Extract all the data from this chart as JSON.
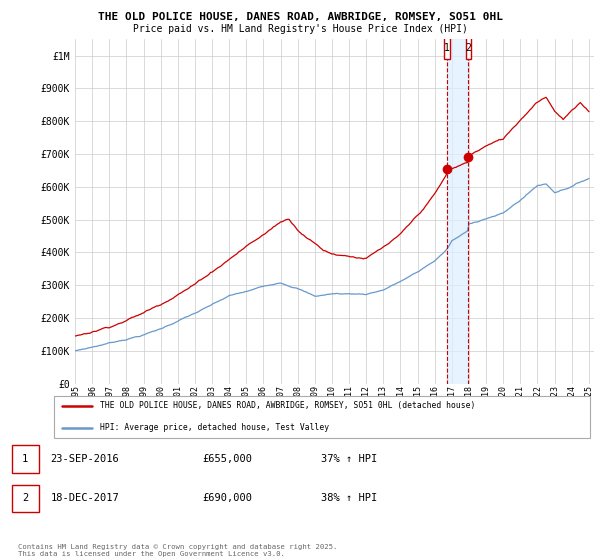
{
  "title_line1": "THE OLD POLICE HOUSE, DANES ROAD, AWBRIDGE, ROMSEY, SO51 0HL",
  "title_line2": "Price paid vs. HM Land Registry's House Price Index (HPI)",
  "red_label": "THE OLD POLICE HOUSE, DANES ROAD, AWBRIDGE, ROMSEY, SO51 0HL (detached house)",
  "blue_label": "HPI: Average price, detached house, Test Valley",
  "footnote": "Contains HM Land Registry data © Crown copyright and database right 2025.\nThis data is licensed under the Open Government Licence v3.0.",
  "annotation1_date": "23-SEP-2016",
  "annotation1_price": "£655,000",
  "annotation1_hpi": "37% ↑ HPI",
  "annotation2_date": "18-DEC-2017",
  "annotation2_price": "£690,000",
  "annotation2_hpi": "38% ↑ HPI",
  "sale1_year": 2016.72,
  "sale1_price": 655000,
  "sale2_year": 2017.96,
  "sale2_price": 690000,
  "ylim_max": 1050000,
  "background_color": "#ffffff",
  "grid_color": "#cccccc",
  "red_color": "#cc0000",
  "blue_color": "#6699cc",
  "shade_color": "#ddeeff"
}
